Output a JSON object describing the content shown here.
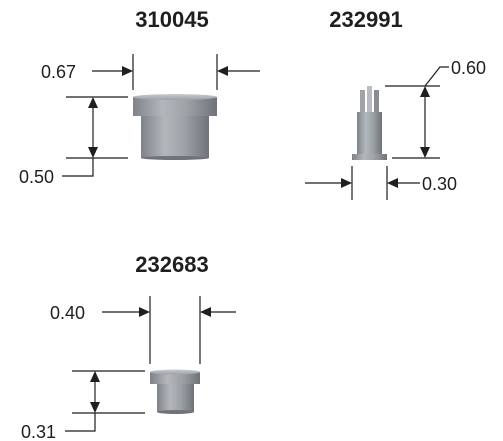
{
  "parts": [
    {
      "part_number": "310045",
      "dimensions": {
        "width": "0.67",
        "height": "0.50"
      },
      "colors": {
        "body": "#8f949a",
        "highlight": "#c6c9cd",
        "shadow": "#6f7379"
      }
    },
    {
      "part_number": "232991",
      "dimensions": {
        "height": "0.60",
        "width": "0.30"
      },
      "colors": {
        "body": "#8f949a",
        "highlight": "#c6c9cd",
        "shadow": "#6f7379"
      }
    },
    {
      "part_number": "232683",
      "dimensions": {
        "width": "0.40",
        "height": "0.31"
      },
      "colors": {
        "body": "#8f949a",
        "highlight": "#c6c9cd",
        "shadow": "#6f7379"
      }
    }
  ]
}
